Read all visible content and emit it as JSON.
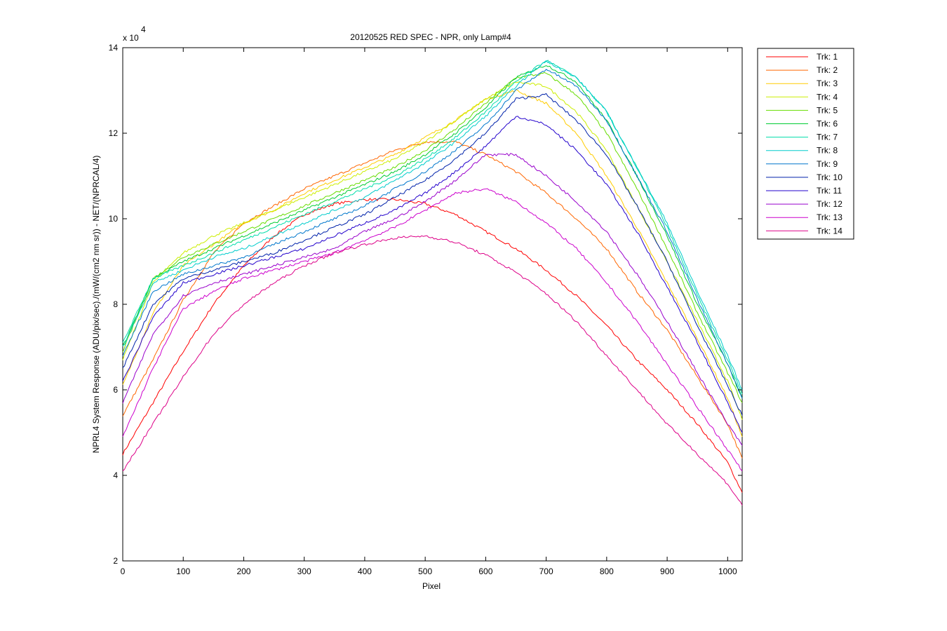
{
  "chart_data": {
    "type": "line",
    "title": "20120525 RED SPEC - NPR, only Lamp#4",
    "xlabel": "Pixel",
    "ylabel": "NPRL4 System Response (ADU/pix/sec)./(mW/(cm2 nm sr)) - NET/(NPRCAL/4)",
    "y_exponent_label": "x 10",
    "y_exponent": "4",
    "xlim": [
      0,
      1024
    ],
    "ylim": [
      2,
      14
    ],
    "xticks": [
      0,
      100,
      200,
      300,
      400,
      500,
      600,
      700,
      800,
      900,
      1000
    ],
    "yticks": [
      2,
      4,
      6,
      8,
      10,
      12,
      14
    ],
    "grid": false,
    "legend_position": "outside-top-right",
    "x": [
      0,
      50,
      100,
      150,
      200,
      250,
      300,
      350,
      400,
      450,
      500,
      550,
      600,
      650,
      700,
      750,
      800,
      850,
      900,
      950,
      1000,
      1024
    ],
    "series": [
      {
        "name": "Trk: 1",
        "color": "#ff0000",
        "values": [
          4.5,
          5.7,
          6.9,
          8.0,
          8.9,
          9.6,
          10.1,
          10.35,
          10.45,
          10.45,
          10.35,
          10.1,
          9.7,
          9.3,
          8.8,
          8.2,
          7.5,
          6.7,
          6.0,
          5.2,
          4.3,
          3.6
        ]
      },
      {
        "name": "Trk: 2",
        "color": "#ff6600",
        "values": [
          5.4,
          6.7,
          8.1,
          9.2,
          9.9,
          10.3,
          10.7,
          11.0,
          11.3,
          11.6,
          11.8,
          11.8,
          11.5,
          11.1,
          10.6,
          10.0,
          9.3,
          8.3,
          7.4,
          6.3,
          5.2,
          4.4
        ]
      },
      {
        "name": "Trk: 3",
        "color": "#ffcc00",
        "values": [
          6.1,
          7.8,
          8.9,
          9.4,
          9.9,
          10.2,
          10.6,
          10.9,
          11.2,
          11.5,
          11.9,
          12.3,
          12.8,
          13.0,
          12.7,
          12.0,
          11.0,
          9.8,
          8.5,
          7.2,
          5.8,
          4.9
        ]
      },
      {
        "name": "Trk: 4",
        "color": "#ccee00",
        "values": [
          6.7,
          8.5,
          9.2,
          9.6,
          9.9,
          10.2,
          10.5,
          10.8,
          11.1,
          11.4,
          11.8,
          12.3,
          12.8,
          13.2,
          13.1,
          12.5,
          11.6,
          10.3,
          9.0,
          7.6,
          6.2,
          5.3
        ]
      },
      {
        "name": "Trk: 5",
        "color": "#66dd00",
        "values": [
          6.9,
          8.6,
          9.1,
          9.4,
          9.7,
          10.0,
          10.3,
          10.6,
          10.9,
          11.2,
          11.6,
          12.1,
          12.7,
          13.3,
          13.4,
          12.9,
          12.0,
          10.7,
          9.3,
          7.8,
          6.4,
          5.7
        ]
      },
      {
        "name": "Trk: 6",
        "color": "#00cc33",
        "values": [
          7.0,
          8.6,
          9.0,
          9.3,
          9.6,
          9.9,
          10.2,
          10.5,
          10.8,
          11.1,
          11.5,
          12.0,
          12.6,
          13.3,
          13.6,
          13.2,
          12.3,
          11.0,
          9.6,
          8.0,
          6.6,
          5.8
        ]
      },
      {
        "name": "Trk: 7",
        "color": "#00ddaa",
        "values": [
          7.1,
          8.6,
          8.9,
          9.2,
          9.5,
          9.8,
          10.1,
          10.4,
          10.7,
          11.0,
          11.4,
          11.9,
          12.5,
          13.2,
          13.7,
          13.3,
          12.5,
          11.2,
          9.8,
          8.2,
          6.7,
          5.9
        ]
      },
      {
        "name": "Trk: 8",
        "color": "#00cccc",
        "values": [
          7.0,
          8.5,
          8.8,
          9.1,
          9.3,
          9.6,
          9.9,
          10.2,
          10.5,
          10.9,
          11.3,
          11.8,
          12.4,
          13.1,
          13.7,
          13.3,
          12.5,
          11.2,
          9.9,
          8.3,
          6.8,
          6.0
        ]
      },
      {
        "name": "Trk: 9",
        "color": "#0077cc",
        "values": [
          6.8,
          8.3,
          8.7,
          8.9,
          9.1,
          9.4,
          9.7,
          10.0,
          10.3,
          10.7,
          11.1,
          11.6,
          12.2,
          13.0,
          13.5,
          13.1,
          12.3,
          11.0,
          9.7,
          8.1,
          6.6,
          5.8
        ]
      },
      {
        "name": "Trk: 10",
        "color": "#0022aa",
        "values": [
          6.5,
          8.0,
          8.6,
          8.8,
          9.0,
          9.2,
          9.5,
          9.8,
          10.1,
          10.5,
          10.9,
          11.4,
          12.0,
          12.8,
          12.9,
          12.3,
          11.5,
          10.3,
          9.0,
          7.5,
          6.1,
          5.4
        ]
      },
      {
        "name": "Trk: 11",
        "color": "#2200cc",
        "values": [
          6.2,
          7.7,
          8.5,
          8.7,
          8.9,
          9.1,
          9.3,
          9.6,
          9.9,
          10.2,
          10.6,
          11.1,
          11.7,
          12.4,
          12.2,
          11.6,
          10.8,
          9.7,
          8.4,
          7.1,
          5.7,
          5.0
        ]
      },
      {
        "name": "Trk: 12",
        "color": "#9900cc",
        "values": [
          5.7,
          7.3,
          8.2,
          8.5,
          8.7,
          8.9,
          9.1,
          9.3,
          9.7,
          10.0,
          10.4,
          10.9,
          11.5,
          11.5,
          11.0,
          10.4,
          9.7,
          8.7,
          7.6,
          6.4,
          5.2,
          4.7
        ]
      },
      {
        "name": "Trk: 13",
        "color": "#cc00cc",
        "values": [
          4.9,
          6.5,
          7.9,
          8.3,
          8.6,
          8.8,
          9.0,
          9.2,
          9.5,
          9.8,
          10.2,
          10.6,
          10.7,
          10.4,
          9.9,
          9.3,
          8.5,
          7.6,
          6.6,
          5.6,
          4.6,
          4.1
        ]
      },
      {
        "name": "Trk: 14",
        "color": "#dd0088",
        "values": [
          4.1,
          5.2,
          6.3,
          7.3,
          8.0,
          8.5,
          8.9,
          9.2,
          9.4,
          9.55,
          9.6,
          9.45,
          9.15,
          8.75,
          8.25,
          7.6,
          6.8,
          6.0,
          5.2,
          4.5,
          3.8,
          3.3
        ]
      }
    ]
  }
}
